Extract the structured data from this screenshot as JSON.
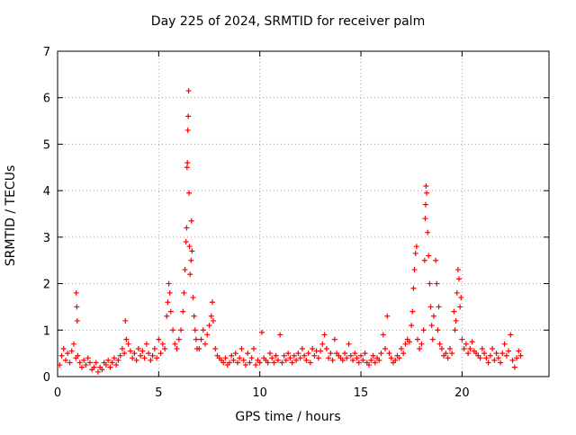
{
  "chart_data": {
    "type": "scatter",
    "title": "Day 225 of 2024, SRMTID for receiver palm",
    "xlabel": "GPS time / hours",
    "ylabel": "SRMTID / TECUs",
    "xlim": [
      0,
      24.3
    ],
    "ylim": [
      0,
      7
    ],
    "xticks": [
      0,
      5,
      10,
      15,
      20
    ],
    "yticks": [
      0,
      1,
      2,
      3,
      4,
      5,
      6,
      7
    ],
    "grid": true,
    "marker": "+",
    "color": "#ff0000",
    "series": [
      {
        "name": "SRMTID",
        "points": [
          [
            0.1,
            0.25
          ],
          [
            0.2,
            0.45
          ],
          [
            0.3,
            0.6
          ],
          [
            0.4,
            0.35
          ],
          [
            0.5,
            0.5
          ],
          [
            0.6,
            0.3
          ],
          [
            0.7,
            0.55
          ],
          [
            0.8,
            0.7
          ],
          [
            0.9,
            0.4
          ],
          [
            0.92,
            1.8
          ],
          [
            0.95,
            1.5
          ],
          [
            0.97,
            1.2
          ],
          [
            1.0,
            0.45
          ],
          [
            1.1,
            0.3
          ],
          [
            1.2,
            0.2
          ],
          [
            1.3,
            0.35
          ],
          [
            1.4,
            0.25
          ],
          [
            1.5,
            0.4
          ],
          [
            1.6,
            0.3
          ],
          [
            1.7,
            0.15
          ],
          [
            1.8,
            0.2
          ],
          [
            1.9,
            0.3
          ],
          [
            2.0,
            0.1
          ],
          [
            2.1,
            0.2
          ],
          [
            2.2,
            0.15
          ],
          [
            2.3,
            0.3
          ],
          [
            2.4,
            0.25
          ],
          [
            2.5,
            0.35
          ],
          [
            2.6,
            0.2
          ],
          [
            2.7,
            0.3
          ],
          [
            2.8,
            0.4
          ],
          [
            2.9,
            0.25
          ],
          [
            3.0,
            0.35
          ],
          [
            3.1,
            0.45
          ],
          [
            3.2,
            0.6
          ],
          [
            3.3,
            0.5
          ],
          [
            3.35,
            1.2
          ],
          [
            3.4,
            0.8
          ],
          [
            3.5,
            0.7
          ],
          [
            3.6,
            0.55
          ],
          [
            3.7,
            0.4
          ],
          [
            3.8,
            0.5
          ],
          [
            3.9,
            0.35
          ],
          [
            4.0,
            0.6
          ],
          [
            4.1,
            0.45
          ],
          [
            4.2,
            0.55
          ],
          [
            4.3,
            0.4
          ],
          [
            4.4,
            0.7
          ],
          [
            4.5,
            0.5
          ],
          [
            4.6,
            0.35
          ],
          [
            4.7,
            0.45
          ],
          [
            4.8,
            0.6
          ],
          [
            4.9,
            0.4
          ],
          [
            5.0,
            0.8
          ],
          [
            5.1,
            0.5
          ],
          [
            5.2,
            0.7
          ],
          [
            5.3,
            0.6
          ],
          [
            5.4,
            1.3
          ],
          [
            5.45,
            1.6
          ],
          [
            5.5,
            2.0
          ],
          [
            5.55,
            1.8
          ],
          [
            5.6,
            1.4
          ],
          [
            5.7,
            1.0
          ],
          [
            5.8,
            0.7
          ],
          [
            5.9,
            0.6
          ],
          [
            6.0,
            0.8
          ],
          [
            6.1,
            1.0
          ],
          [
            6.2,
            1.4
          ],
          [
            6.25,
            1.8
          ],
          [
            6.3,
            2.3
          ],
          [
            6.35,
            2.9
          ],
          [
            6.38,
            3.2
          ],
          [
            6.4,
            4.5
          ],
          [
            6.42,
            4.6
          ],
          [
            6.44,
            5.3
          ],
          [
            6.46,
            5.6
          ],
          [
            6.48,
            6.15
          ],
          [
            6.5,
            3.95
          ],
          [
            6.52,
            2.8
          ],
          [
            6.55,
            2.2
          ],
          [
            6.6,
            2.5
          ],
          [
            6.62,
            3.35
          ],
          [
            6.65,
            2.7
          ],
          [
            6.7,
            1.7
          ],
          [
            6.75,
            1.3
          ],
          [
            6.8,
            1.0
          ],
          [
            6.85,
            0.8
          ],
          [
            6.9,
            0.6
          ],
          [
            7.0,
            0.6
          ],
          [
            7.1,
            0.8
          ],
          [
            7.2,
            1.0
          ],
          [
            7.3,
            0.7
          ],
          [
            7.4,
            0.9
          ],
          [
            7.5,
            1.1
          ],
          [
            7.6,
            1.3
          ],
          [
            7.65,
            1.6
          ],
          [
            7.7,
            1.2
          ],
          [
            7.8,
            0.6
          ],
          [
            7.9,
            0.45
          ],
          [
            8.0,
            0.4
          ],
          [
            8.1,
            0.35
          ],
          [
            8.2,
            0.3
          ],
          [
            8.3,
            0.4
          ],
          [
            8.4,
            0.25
          ],
          [
            8.5,
            0.3
          ],
          [
            8.6,
            0.45
          ],
          [
            8.7,
            0.35
          ],
          [
            8.8,
            0.5
          ],
          [
            8.9,
            0.3
          ],
          [
            9.0,
            0.4
          ],
          [
            9.1,
            0.6
          ],
          [
            9.2,
            0.35
          ],
          [
            9.3,
            0.25
          ],
          [
            9.4,
            0.5
          ],
          [
            9.5,
            0.3
          ],
          [
            9.6,
            0.4
          ],
          [
            9.7,
            0.6
          ],
          [
            9.8,
            0.25
          ],
          [
            9.9,
            0.35
          ],
          [
            10.0,
            0.3
          ],
          [
            10.1,
            0.95
          ],
          [
            10.2,
            0.4
          ],
          [
            10.3,
            0.35
          ],
          [
            10.4,
            0.3
          ],
          [
            10.5,
            0.5
          ],
          [
            10.6,
            0.4
          ],
          [
            10.7,
            0.3
          ],
          [
            10.8,
            0.45
          ],
          [
            10.9,
            0.35
          ],
          [
            11.0,
            0.9
          ],
          [
            11.1,
            0.3
          ],
          [
            11.2,
            0.45
          ],
          [
            11.3,
            0.35
          ],
          [
            11.4,
            0.5
          ],
          [
            11.5,
            0.4
          ],
          [
            11.6,
            0.3
          ],
          [
            11.7,
            0.45
          ],
          [
            11.8,
            0.35
          ],
          [
            11.9,
            0.5
          ],
          [
            12.0,
            0.4
          ],
          [
            12.1,
            0.6
          ],
          [
            12.2,
            0.45
          ],
          [
            12.3,
            0.35
          ],
          [
            12.4,
            0.5
          ],
          [
            12.5,
            0.3
          ],
          [
            12.6,
            0.6
          ],
          [
            12.7,
            0.45
          ],
          [
            12.8,
            0.55
          ],
          [
            12.9,
            0.4
          ],
          [
            13.0,
            0.55
          ],
          [
            13.1,
            0.7
          ],
          [
            13.2,
            0.9
          ],
          [
            13.3,
            0.6
          ],
          [
            13.4,
            0.4
          ],
          [
            13.5,
            0.5
          ],
          [
            13.6,
            0.35
          ],
          [
            13.7,
            0.8
          ],
          [
            13.8,
            0.5
          ],
          [
            13.9,
            0.45
          ],
          [
            14.0,
            0.4
          ],
          [
            14.1,
            0.35
          ],
          [
            14.2,
            0.5
          ],
          [
            14.3,
            0.4
          ],
          [
            14.4,
            0.7
          ],
          [
            14.5,
            0.45
          ],
          [
            14.6,
            0.35
          ],
          [
            14.7,
            0.5
          ],
          [
            14.8,
            0.4
          ],
          [
            14.9,
            0.3
          ],
          [
            15.0,
            0.45
          ],
          [
            15.1,
            0.35
          ],
          [
            15.2,
            0.5
          ],
          [
            15.3,
            0.3
          ],
          [
            15.4,
            0.25
          ],
          [
            15.5,
            0.35
          ],
          [
            15.6,
            0.45
          ],
          [
            15.7,
            0.3
          ],
          [
            15.8,
            0.4
          ],
          [
            15.9,
            0.35
          ],
          [
            16.0,
            0.5
          ],
          [
            16.1,
            0.9
          ],
          [
            16.2,
            0.6
          ],
          [
            16.3,
            1.3
          ],
          [
            16.4,
            0.5
          ],
          [
            16.5,
            0.4
          ],
          [
            16.6,
            0.3
          ],
          [
            16.7,
            0.35
          ],
          [
            16.8,
            0.45
          ],
          [
            16.9,
            0.4
          ],
          [
            17.0,
            0.6
          ],
          [
            17.1,
            0.5
          ],
          [
            17.2,
            0.7
          ],
          [
            17.3,
            0.8
          ],
          [
            17.4,
            0.75
          ],
          [
            17.5,
            1.1
          ],
          [
            17.55,
            1.4
          ],
          [
            17.6,
            1.9
          ],
          [
            17.65,
            2.3
          ],
          [
            17.7,
            2.65
          ],
          [
            17.75,
            2.8
          ],
          [
            17.8,
            0.8
          ],
          [
            17.9,
            0.6
          ],
          [
            18.0,
            0.7
          ],
          [
            18.1,
            1.0
          ],
          [
            18.15,
            2.5
          ],
          [
            18.18,
            3.4
          ],
          [
            18.2,
            3.7
          ],
          [
            18.22,
            4.1
          ],
          [
            18.25,
            3.95
          ],
          [
            18.3,
            3.1
          ],
          [
            18.35,
            2.6
          ],
          [
            18.4,
            2.0
          ],
          [
            18.45,
            1.5
          ],
          [
            18.5,
            1.1
          ],
          [
            18.55,
            0.8
          ],
          [
            18.6,
            1.3
          ],
          [
            18.7,
            2.5
          ],
          [
            18.75,
            2.0
          ],
          [
            18.8,
            1.0
          ],
          [
            18.85,
            1.5
          ],
          [
            18.9,
            0.7
          ],
          [
            19.0,
            0.6
          ],
          [
            19.1,
            0.45
          ],
          [
            19.2,
            0.5
          ],
          [
            19.3,
            0.4
          ],
          [
            19.4,
            0.6
          ],
          [
            19.5,
            0.5
          ],
          [
            19.6,
            1.4
          ],
          [
            19.65,
            1.0
          ],
          [
            19.7,
            1.2
          ],
          [
            19.75,
            1.8
          ],
          [
            19.8,
            2.3
          ],
          [
            19.85,
            2.1
          ],
          [
            19.9,
            1.5
          ],
          [
            19.95,
            1.7
          ],
          [
            20.0,
            0.8
          ],
          [
            20.1,
            0.6
          ],
          [
            20.2,
            0.7
          ],
          [
            20.3,
            0.5
          ],
          [
            20.4,
            0.6
          ],
          [
            20.5,
            0.75
          ],
          [
            20.6,
            0.55
          ],
          [
            20.7,
            0.5
          ],
          [
            20.8,
            0.45
          ],
          [
            20.9,
            0.4
          ],
          [
            21.0,
            0.6
          ],
          [
            21.1,
            0.5
          ],
          [
            21.2,
            0.4
          ],
          [
            21.3,
            0.3
          ],
          [
            21.4,
            0.45
          ],
          [
            21.5,
            0.6
          ],
          [
            21.6,
            0.35
          ],
          [
            21.7,
            0.5
          ],
          [
            21.8,
            0.4
          ],
          [
            21.9,
            0.3
          ],
          [
            22.0,
            0.5
          ],
          [
            22.1,
            0.7
          ],
          [
            22.2,
            0.45
          ],
          [
            22.3,
            0.55
          ],
          [
            22.4,
            0.9
          ],
          [
            22.5,
            0.35
          ],
          [
            22.6,
            0.2
          ],
          [
            22.7,
            0.4
          ],
          [
            22.8,
            0.55
          ],
          [
            22.9,
            0.45
          ]
        ]
      }
    ]
  }
}
